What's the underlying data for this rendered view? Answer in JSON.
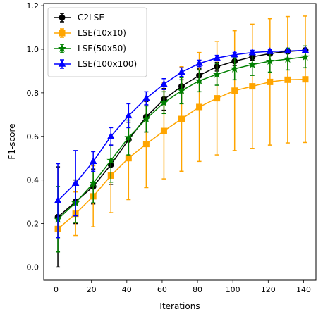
{
  "chart_data": {
    "type": "line",
    "title": "",
    "xlabel": "Iterations",
    "ylabel": "F1-score",
    "xlim": [
      -7,
      147
    ],
    "ylim": [
      -0.06,
      1.21
    ],
    "xticks": [
      0,
      20,
      40,
      60,
      80,
      100,
      120,
      140
    ],
    "yticks": [
      0.0,
      0.2,
      0.4,
      0.6,
      0.8,
      1.0,
      1.2
    ],
    "ytick_labels": [
      "0.0",
      "0.2",
      "0.4",
      "0.6",
      "0.8",
      "1.0",
      "1.2"
    ],
    "grid": false,
    "legend_position": "top-left",
    "x": [
      1,
      11,
      21,
      31,
      41,
      51,
      61,
      71,
      81,
      91,
      101,
      111,
      121,
      131,
      141
    ],
    "series": [
      {
        "name": "C2LSE",
        "color": "#000000",
        "marker": "circle",
        "values": [
          0.23,
          0.3,
          0.37,
          0.47,
          0.585,
          0.69,
          0.77,
          0.83,
          0.88,
          0.92,
          0.945,
          0.965,
          0.98,
          0.99,
          0.995
        ],
        "errors": [
          0.23,
          0.1,
          0.08,
          0.09,
          0.08,
          0.07,
          0.05,
          0.03,
          0.03,
          0.02,
          0.02,
          0.015,
          0.01,
          0.01,
          0.01
        ]
      },
      {
        "name": "LSE(10x10)",
        "color": "#ffa500",
        "marker": "square",
        "values": [
          0.175,
          0.245,
          0.325,
          0.42,
          0.5,
          0.565,
          0.625,
          0.68,
          0.735,
          0.775,
          0.81,
          0.83,
          0.85,
          0.86,
          0.862
        ],
        "errors": [
          0.04,
          0.1,
          0.14,
          0.17,
          0.19,
          0.2,
          0.22,
          0.24,
          0.25,
          0.26,
          0.275,
          0.285,
          0.29,
          0.29,
          0.29
        ]
      },
      {
        "name": "LSE(50x50)",
        "color": "#008000",
        "marker": "star",
        "values": [
          0.22,
          0.295,
          0.385,
          0.49,
          0.595,
          0.68,
          0.755,
          0.81,
          0.855,
          0.885,
          0.91,
          0.93,
          0.945,
          0.955,
          0.965
        ],
        "errors": [
          0.15,
          0.09,
          0.09,
          0.1,
          0.08,
          0.06,
          0.05,
          0.06,
          0.05,
          0.05,
          0.05,
          0.05,
          0.05,
          0.05,
          0.05
        ]
      },
      {
        "name": "LSE(100x100)",
        "color": "#0000ff",
        "marker": "triangle",
        "values": [
          0.305,
          0.385,
          0.485,
          0.6,
          0.695,
          0.775,
          0.84,
          0.895,
          0.935,
          0.96,
          0.975,
          0.985,
          0.99,
          0.992,
          0.995
        ],
        "errors": [
          0.17,
          0.15,
          0.045,
          0.04,
          0.055,
          0.03,
          0.025,
          0.02,
          0.015,
          0.012,
          0.01,
          0.01,
          0.008,
          0.005,
          0.005
        ]
      }
    ]
  }
}
